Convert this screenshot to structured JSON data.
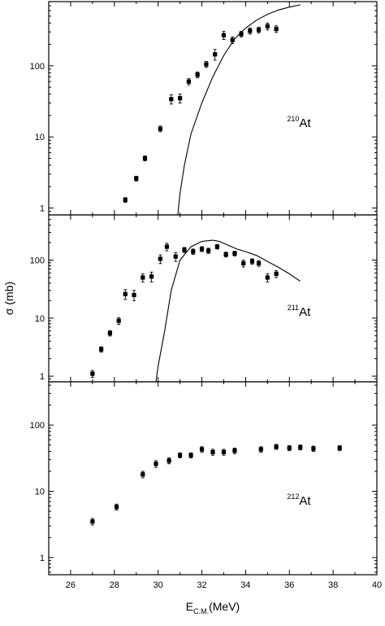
{
  "chart_data": [
    {
      "type": "scatter",
      "panel_label": {
        "mass": "210",
        "element": "At"
      },
      "yscale": "log",
      "ylim": [
        0.8,
        800
      ],
      "xlim": [
        25,
        40
      ],
      "yticks": [
        1,
        10,
        100
      ],
      "ytick_labels": [
        "1",
        "10",
        "100"
      ],
      "series": [
        {
          "kind": "points_with_error",
          "x": [
            28.5,
            29.0,
            29.4,
            30.1,
            30.6,
            31.0,
            31.4,
            31.8,
            32.2,
            32.6,
            33.0,
            33.4,
            33.8,
            34.2,
            34.6,
            35.0,
            35.4
          ],
          "y": [
            1.3,
            2.6,
            5.0,
            13,
            34,
            35,
            60,
            75,
            105,
            145,
            270,
            230,
            280,
            310,
            320,
            360,
            330
          ],
          "err": [
            0.1,
            0.2,
            0.4,
            1.2,
            5,
            5,
            6,
            7,
            10,
            25,
            35,
            25,
            25,
            30,
            30,
            40,
            35
          ]
        },
        {
          "kind": "line",
          "x": [
            30.9,
            31.0,
            31.2,
            31.5,
            32.0,
            32.5,
            33.0,
            33.5,
            34.0,
            34.5,
            35.0,
            35.5,
            36.0,
            36.5
          ],
          "y": [
            0.8,
            1.6,
            4.0,
            11,
            30,
            70,
            140,
            240,
            340,
            440,
            530,
            610,
            670,
            720
          ]
        }
      ]
    },
    {
      "type": "scatter",
      "panel_label": {
        "mass": "211",
        "element": "At"
      },
      "yscale": "log",
      "ylim": [
        0.8,
        600
      ],
      "xlim": [
        25,
        40
      ],
      "yticks": [
        1,
        10,
        100
      ],
      "ytick_labels": [
        "1",
        "10",
        "100"
      ],
      "ylabel": "σ (mb)",
      "series": [
        {
          "kind": "points_with_error",
          "x": [
            27.0,
            27.4,
            27.8,
            28.2,
            28.5,
            28.9,
            29.3,
            29.7,
            30.1,
            30.4,
            30.8,
            31.2,
            31.6,
            32.0,
            32.3,
            32.7,
            33.1,
            33.5,
            33.9,
            34.3,
            34.6,
            35.0,
            35.4
          ],
          "y": [
            1.1,
            2.9,
            5.5,
            9,
            26,
            25,
            50,
            52,
            105,
            170,
            115,
            150,
            140,
            155,
            145,
            170,
            125,
            130,
            88,
            95,
            88,
            50,
            58
          ],
          "err": [
            0.15,
            0.3,
            0.6,
            1.2,
            5,
            5,
            8,
            10,
            18,
            25,
            20,
            15,
            15,
            15,
            15,
            15,
            12,
            12,
            12,
            10,
            10,
            8,
            8
          ]
        },
        {
          "kind": "line",
          "x": [
            29.9,
            30.0,
            30.3,
            30.6,
            31.0,
            31.5,
            32.0,
            32.5,
            32.8,
            33.2,
            33.6,
            34.0,
            34.5,
            35.0,
            35.5,
            36.0,
            36.5
          ],
          "y": [
            0.8,
            1.5,
            6,
            30,
            100,
            170,
            210,
            220,
            210,
            180,
            155,
            140,
            120,
            95,
            75,
            58,
            43
          ]
        }
      ]
    },
    {
      "type": "scatter",
      "panel_label": {
        "mass": "212",
        "element": "At"
      },
      "yscale": "log",
      "ylim": [
        0.55,
        450
      ],
      "xlim": [
        25,
        40
      ],
      "yticks": [
        1,
        10,
        100
      ],
      "ytick_labels": [
        "1",
        "10",
        "100"
      ],
      "xticks": [
        26,
        28,
        30,
        32,
        34,
        36,
        38,
        40
      ],
      "xtick_labels": [
        "26",
        "28",
        "30",
        "32",
        "34",
        "36",
        "38",
        "40"
      ],
      "xlabel": {
        "prefix": "E",
        "subscript": "C.M.",
        "suffix": "(MeV)"
      },
      "series": [
        {
          "kind": "points_with_error",
          "x": [
            27.0,
            28.1,
            29.3,
            29.9,
            30.5,
            31.0,
            31.5,
            32.0,
            32.5,
            33.0,
            33.5,
            34.7,
            35.4,
            36.0,
            36.5,
            37.1,
            38.3
          ],
          "y": [
            3.5,
            5.8,
            18,
            26,
            29,
            35,
            35,
            43,
            39,
            39,
            41,
            43,
            47,
            45,
            46,
            44,
            45
          ],
          "err": [
            0.4,
            0.6,
            2,
            3,
            3,
            3,
            3,
            4,
            4,
            4,
            4,
            4,
            4,
            4,
            4,
            4,
            4
          ]
        }
      ]
    }
  ]
}
